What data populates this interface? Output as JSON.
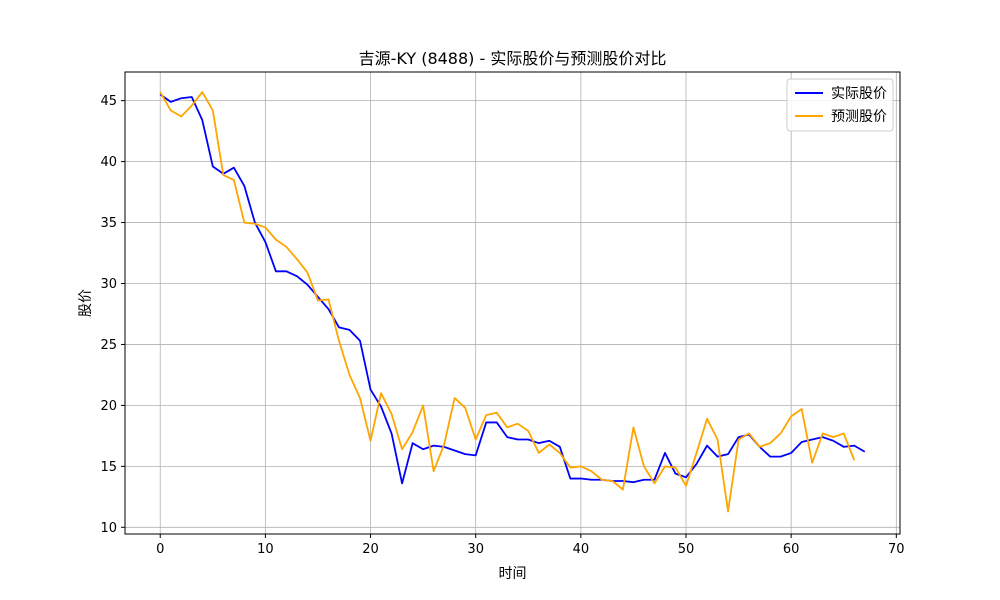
{
  "chart_data": {
    "type": "line",
    "title": "吉源-KY (8488) - 实际股价与预测股价对比",
    "xlabel": "时间",
    "ylabel": "股价",
    "xlim": [
      -3.35,
      70.35
    ],
    "ylim": [
      9.45,
      47.35
    ],
    "xticks": [
      0,
      10,
      20,
      30,
      40,
      50,
      60,
      70
    ],
    "yticks": [
      10,
      15,
      20,
      25,
      30,
      35,
      40,
      45
    ],
    "grid": true,
    "legend_position": "top-right",
    "series": [
      {
        "name": "实际股价",
        "color": "#0000ff",
        "x": [
          0,
          1,
          2,
          3,
          4,
          5,
          6,
          7,
          8,
          9,
          10,
          11,
          12,
          13,
          14,
          15,
          16,
          17,
          18,
          19,
          20,
          21,
          22,
          23,
          24,
          25,
          26,
          27,
          28,
          29,
          30,
          31,
          32,
          33,
          34,
          35,
          36,
          37,
          38,
          39,
          40,
          41,
          42,
          43,
          44,
          45,
          46,
          47,
          48,
          49,
          50,
          51,
          52,
          53,
          54,
          55,
          56,
          57,
          58,
          59,
          60,
          61,
          62,
          63,
          64,
          65,
          66,
          67
        ],
        "values": [
          45.5,
          44.9,
          45.2,
          45.3,
          43.4,
          39.6,
          39.0,
          39.5,
          38.0,
          35.0,
          33.4,
          31.0,
          31.0,
          30.6,
          29.9,
          28.9,
          27.9,
          26.4,
          26.2,
          25.3,
          21.3,
          19.9,
          17.7,
          13.6,
          16.9,
          16.4,
          16.7,
          16.6,
          16.3,
          16.0,
          15.9,
          18.6,
          18.6,
          17.4,
          17.2,
          17.2,
          16.9,
          17.1,
          16.6,
          14.0,
          14.0,
          13.9,
          13.9,
          13.8,
          13.8,
          13.7,
          13.9,
          13.9,
          16.1,
          14.4,
          14.1,
          15.2,
          16.7,
          15.8,
          16.0,
          17.4,
          17.6,
          16.6,
          15.8,
          15.8,
          16.1,
          17.0,
          17.2,
          17.4,
          17.1,
          16.6,
          16.7,
          16.2
        ]
      },
      {
        "name": "预测股价",
        "color": "#ffa500",
        "x": [
          0,
          1,
          2,
          3,
          4,
          5,
          6,
          7,
          8,
          9,
          10,
          11,
          12,
          13,
          14,
          15,
          16,
          17,
          18,
          19,
          20,
          21,
          22,
          23,
          24,
          25,
          26,
          27,
          28,
          29,
          30,
          31,
          32,
          33,
          34,
          35,
          36,
          37,
          38,
          39,
          40,
          41,
          42,
          43,
          44,
          45,
          46,
          47,
          48,
          49,
          50,
          51,
          52,
          53,
          54,
          55,
          56,
          57,
          58,
          59,
          60,
          61,
          62,
          63,
          64,
          65,
          66
        ],
        "values": [
          45.7,
          44.2,
          43.7,
          44.6,
          45.7,
          44.2,
          38.9,
          38.5,
          35.0,
          34.9,
          34.6,
          33.6,
          33.0,
          32.0,
          30.9,
          28.6,
          28.7,
          25.3,
          22.5,
          20.6,
          17.1,
          21.0,
          19.3,
          16.4,
          17.8,
          20.0,
          14.6,
          16.8,
          20.6,
          19.8,
          17.2,
          19.2,
          19.4,
          18.2,
          18.5,
          17.9,
          16.1,
          16.8,
          16.1,
          14.9,
          15.0,
          14.6,
          13.9,
          13.8,
          13.1,
          18.2,
          15.0,
          13.6,
          15.0,
          14.9,
          13.4,
          16.1,
          18.9,
          17.2,
          11.3,
          17.2,
          17.7,
          16.6,
          16.9,
          17.7,
          19.1,
          19.7,
          15.3,
          17.7,
          17.4,
          17.7,
          15.5
        ]
      }
    ]
  }
}
